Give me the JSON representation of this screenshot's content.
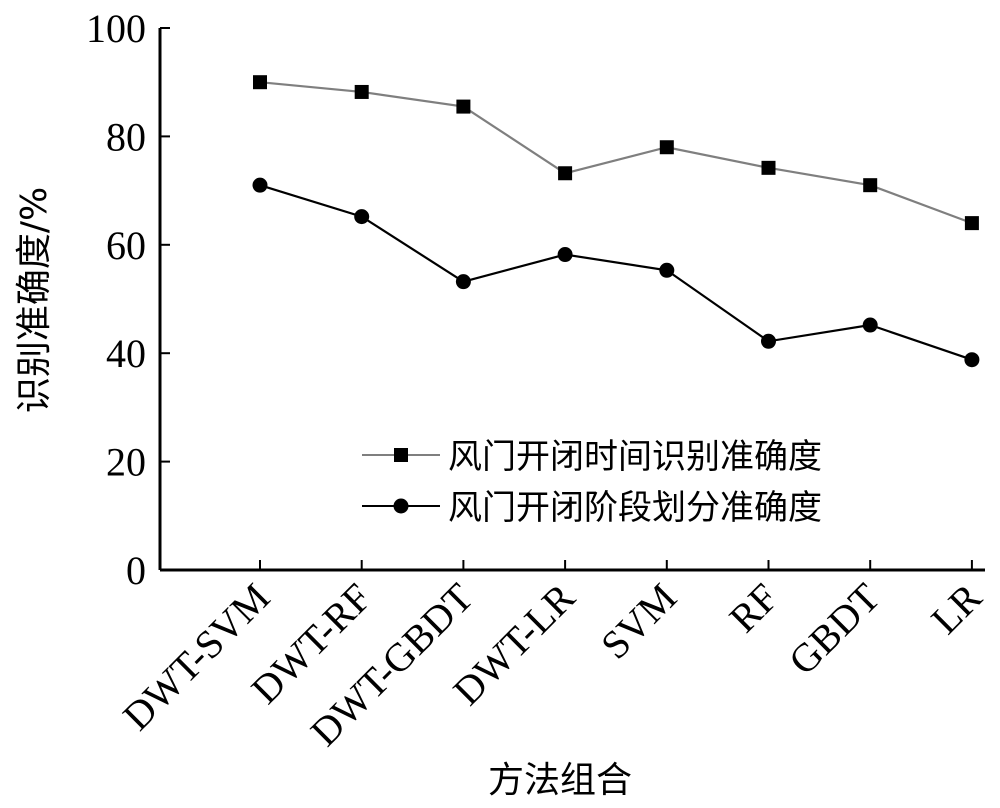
{
  "chart_data": {
    "type": "line",
    "categories": [
      "DWT-SVM",
      "DWT-RF",
      "DWT-GBDT",
      "DWT-LR",
      "SVM",
      "RF",
      "GBDT",
      "LR"
    ],
    "xlabel": "方法组合",
    "ylabel": "识别准确度/%",
    "ylim": [
      0,
      100
    ],
    "yticks": [
      "0",
      "20",
      "40",
      "60",
      "80",
      "100"
    ],
    "legend_position": "bottom-right",
    "grid": false,
    "series": [
      {
        "name": "风门开闭时间识别准确度",
        "marker": "square",
        "color": "#7f7f7f",
        "values": [
          90,
          88.2,
          85.5,
          73.2,
          78,
          74.2,
          71,
          64
        ]
      },
      {
        "name": "风门开闭阶段划分准确度",
        "marker": "circle",
        "color": "#000000",
        "values": [
          71,
          65.2,
          53.2,
          58.2,
          55.3,
          42.2,
          45.2,
          38.8
        ]
      }
    ]
  }
}
